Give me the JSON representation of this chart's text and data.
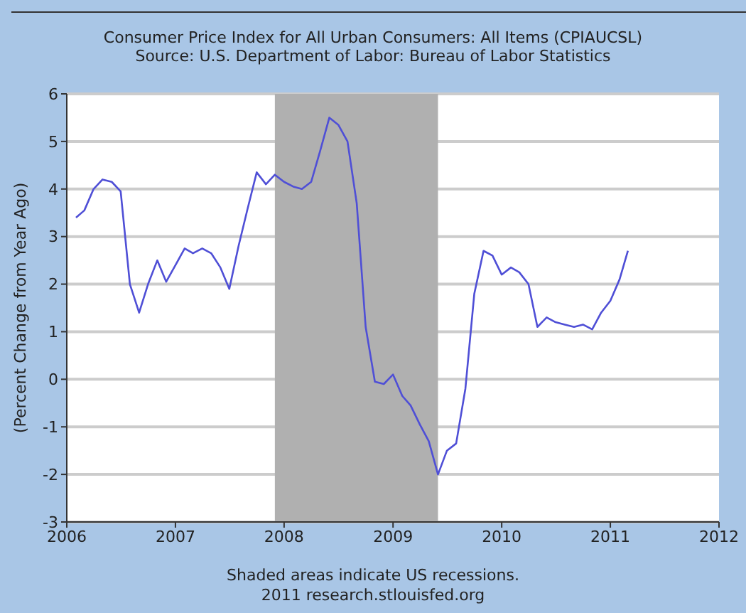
{
  "chart_data": {
    "type": "line",
    "title": "Consumer Price Index for All Urban Consumers: All Items (CPIAUCSL)",
    "subtitle": "Source: U.S. Department of Labor: Bureau of Labor Statistics",
    "ylabel": "(Percent Change from Year Ago)",
    "annotations": [
      "Shaded areas indicate US recessions.",
      "2011 research.stlouisfed.org"
    ],
    "x": [
      "2006-02",
      "2006-03",
      "2006-04",
      "2006-05",
      "2006-06",
      "2006-07",
      "2006-08",
      "2006-09",
      "2006-10",
      "2006-11",
      "2006-12",
      "2007-01",
      "2007-02",
      "2007-03",
      "2007-04",
      "2007-05",
      "2007-06",
      "2007-07",
      "2007-08",
      "2007-09",
      "2007-10",
      "2007-11",
      "2007-12",
      "2008-01",
      "2008-02",
      "2008-03",
      "2008-04",
      "2008-05",
      "2008-06",
      "2008-07",
      "2008-08",
      "2008-09",
      "2008-10",
      "2008-11",
      "2008-12",
      "2009-01",
      "2009-02",
      "2009-03",
      "2009-04",
      "2009-05",
      "2009-06",
      "2009-07",
      "2009-08",
      "2009-09",
      "2009-10",
      "2009-11",
      "2009-12",
      "2010-01",
      "2010-02",
      "2010-03",
      "2010-04",
      "2010-05",
      "2010-06",
      "2010-07",
      "2010-08",
      "2010-09",
      "2010-10",
      "2010-11",
      "2010-12",
      "2011-01",
      "2011-02",
      "2011-03"
    ],
    "series": [
      {
        "color": "#4f4fd6",
        "values": [
          3.4,
          3.55,
          4.0,
          4.2,
          4.15,
          3.95,
          2.0,
          1.4,
          2.0,
          2.5,
          2.05,
          2.4,
          2.75,
          2.65,
          2.75,
          2.65,
          2.35,
          1.9,
          2.8,
          3.6,
          4.35,
          4.1,
          4.3,
          4.15,
          4.05,
          4.0,
          4.15,
          4.8,
          5.5,
          5.35,
          5.0,
          3.7,
          1.1,
          -0.05,
          -0.1,
          0.1,
          -0.35,
          -0.55,
          -0.95,
          -1.3,
          -2.0,
          -1.5,
          -1.35,
          -0.2,
          1.8,
          2.7,
          2.6,
          2.2,
          2.35,
          2.25,
          2.0,
          1.1,
          1.3,
          1.2,
          1.15,
          1.1,
          1.15,
          1.05,
          1.4,
          1.65,
          2.1,
          2.7
        ]
      }
    ],
    "xlim": [
      "2006",
      "2012"
    ],
    "xticks": [
      "2006",
      "2007",
      "2008",
      "2009",
      "2010",
      "2011",
      "2012"
    ],
    "ylim": [
      -3,
      6
    ],
    "yticks": [
      -3,
      -2,
      -1,
      0,
      1,
      2,
      3,
      4,
      5,
      6
    ],
    "grid": "y",
    "marker": "none",
    "line_style": "solid",
    "bands": [
      {
        "axis": "x",
        "from": "2007-12",
        "to": "2009-06",
        "color": "#b0b0b0"
      }
    ]
  }
}
